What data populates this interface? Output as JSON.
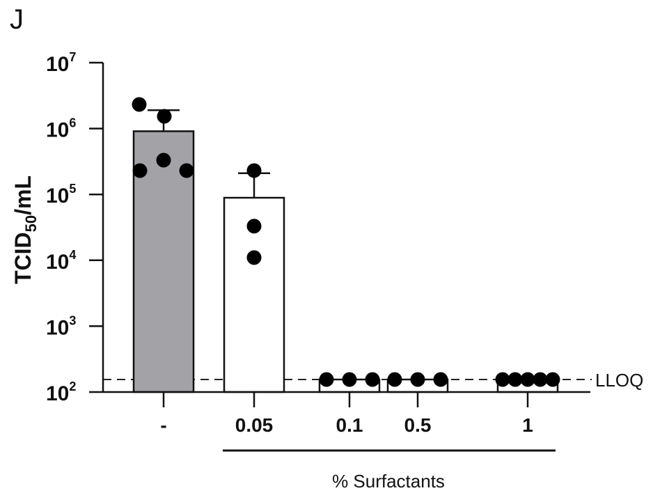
{
  "panel_label": "J",
  "chart_data": {
    "type": "bar",
    "title": "",
    "panel": "J",
    "xlabel": "% Surfactants",
    "ylabel": "TCID50/mL",
    "yscale": "log",
    "ylim": [
      100,
      10000000
    ],
    "yticks": [
      "10^2",
      "10^3",
      "10^4",
      "10^5",
      "10^6",
      "10^7"
    ],
    "categories": [
      "-",
      "0.05",
      "0.1",
      "0.5",
      "1"
    ],
    "bar_colors": [
      "#a3a2a7",
      "#ffffff",
      "#ffffff",
      "#ffffff",
      "#ffffff"
    ],
    "values": [
      910000,
      89000,
      155,
      155,
      155
    ],
    "error_upper": [
      1900000,
      210000,
      155,
      155,
      155
    ],
    "points": [
      [
        2300000,
        1500000,
        330000,
        230000,
        230000
      ],
      [
        230000,
        33000,
        11000
      ],
      [
        155,
        155,
        155
      ],
      [
        155,
        155,
        155
      ],
      [
        155,
        155,
        155,
        155,
        155
      ]
    ],
    "reference_line": {
      "label": "LLOQ",
      "value": 155,
      "style": "dashed"
    },
    "group_bracket": {
      "label": "% Surfactants",
      "spans": [
        "0.05",
        "1"
      ]
    },
    "grid": false,
    "legend": null
  },
  "axis": {
    "yticks": [
      {
        "base": "10",
        "exp": "7"
      },
      {
        "base": "10",
        "exp": "6"
      },
      {
        "base": "10",
        "exp": "5"
      },
      {
        "base": "10",
        "exp": "4"
      },
      {
        "base": "10",
        "exp": "3"
      },
      {
        "base": "10",
        "exp": "2"
      }
    ],
    "ylabel_main": "TCID",
    "ylabel_sub": "50",
    "ylabel_tail": "/mL",
    "xticks": [
      "-",
      "0.05",
      "0.1",
      "0.5",
      "1"
    ],
    "xlabel": "% Surfactants",
    "lloq": "LLOQ"
  }
}
